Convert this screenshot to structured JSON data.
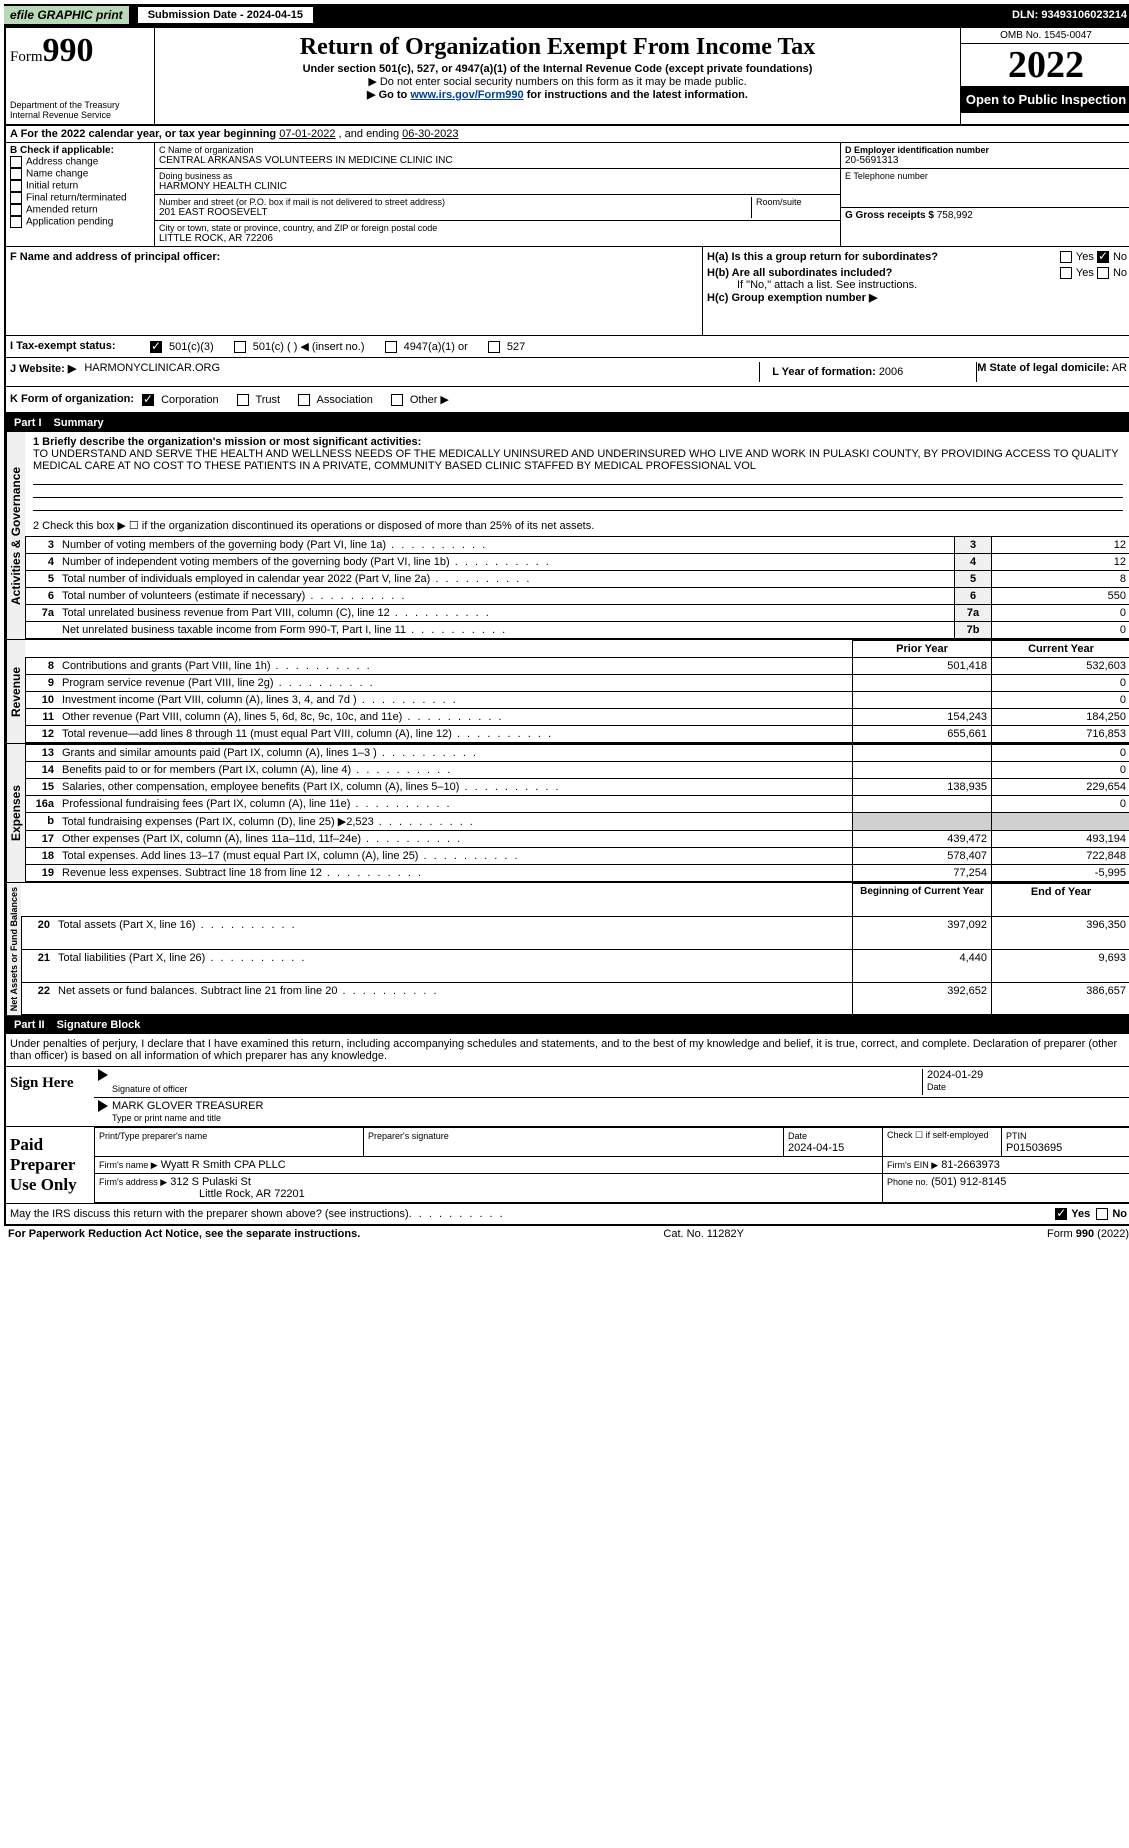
{
  "topbar": {
    "efile": "efile GRAPHIC print",
    "submission_label": "Submission Date - 2024-04-15",
    "dln": "DLN: 93493106023214"
  },
  "header": {
    "form_prefix": "Form",
    "form_number": "990",
    "dept": "Department of the Treasury",
    "irs": "Internal Revenue Service",
    "title": "Return of Organization Exempt From Income Tax",
    "subtitle": "Under section 501(c), 527, or 4947(a)(1) of the Internal Revenue Code (except private foundations)",
    "note1": "▶ Do not enter social security numbers on this form as it may be made public.",
    "note2_pre": "▶ Go to ",
    "note2_link": "www.irs.gov/Form990",
    "note2_post": " for instructions and the latest information.",
    "omb": "OMB No. 1545-0047",
    "year": "2022",
    "open": "Open to Public Inspection"
  },
  "sectionA": {
    "text_pre": "A For the 2022 calendar year, or tax year beginning ",
    "begin": "07-01-2022",
    "mid": " , and ending ",
    "end": "06-30-2023"
  },
  "sectionB": {
    "title": "B Check if applicable:",
    "items": [
      "Address change",
      "Name change",
      "Initial return",
      "Final return/terminated",
      "Amended return",
      "Application pending"
    ]
  },
  "sectionC": {
    "name_label": "C Name of organization",
    "name": "CENTRAL ARKANSAS VOLUNTEERS IN MEDICINE CLINIC INC",
    "dba_label": "Doing business as",
    "dba": "HARMONY HEALTH CLINIC",
    "street_label": "Number and street (or P.O. box if mail is not delivered to street address)",
    "street": "201 EAST ROOSEVELT",
    "room_label": "Room/suite",
    "city_label": "City or town, state or province, country, and ZIP or foreign postal code",
    "city": "LITTLE ROCK, AR  72206"
  },
  "sectionD": {
    "label": "D Employer identification number",
    "value": "20-5691313"
  },
  "sectionE": {
    "label": "E Telephone number",
    "value": ""
  },
  "sectionG": {
    "label": "G Gross receipts $",
    "value": "758,992"
  },
  "sectionF": {
    "label": "F  Name and address of principal officer:"
  },
  "sectionH": {
    "a": "H(a)  Is this a group return for subordinates?",
    "b": "H(b)  Are all subordinates included?",
    "b_note": "If \"No,\" attach a list. See instructions.",
    "c": "H(c)  Group exemption number ▶",
    "yes": "Yes",
    "no": "No"
  },
  "taxStatus": {
    "label": "I  Tax-exempt status:",
    "opts": [
      "501(c)(3)",
      "501(c) (  ) ◀ (insert no.)",
      "4947(a)(1) or",
      "527"
    ]
  },
  "sectionJ": {
    "label": "J  Website: ▶",
    "value": "HARMONYCLINICAR.ORG"
  },
  "sectionK": {
    "label": "K Form of organization:",
    "opts": [
      "Corporation",
      "Trust",
      "Association",
      "Other ▶"
    ]
  },
  "sectionL": {
    "label": "L Year of formation:",
    "value": "2006"
  },
  "sectionM": {
    "label": "M State of legal domicile:",
    "value": "AR"
  },
  "partI": {
    "label": "Part I",
    "title": "Summary"
  },
  "summary": {
    "q1": "1  Briefly describe the organization's mission or most significant activities:",
    "mission": "TO UNDERSTAND AND SERVE THE HEALTH AND WELLNESS NEEDS OF THE MEDICALLY UNINSURED AND UNDERINSURED WHO LIVE AND WORK IN PULASKI COUNTY, BY PROVIDING ACCESS TO QUALITY MEDICAL CARE AT NO COST TO THESE PATIENTS IN A PRIVATE, COMMUNITY BASED CLINIC STAFFED BY MEDICAL PROFESSIONAL VOL",
    "q2": "2  Check this box ▶ ☐ if the organization discontinued its operations or disposed of more than 25% of its net assets.",
    "lines_gov": [
      {
        "n": "3",
        "d": "Number of voting members of the governing body (Part VI, line 1a)",
        "idx": "3",
        "v": "12"
      },
      {
        "n": "4",
        "d": "Number of independent voting members of the governing body (Part VI, line 1b)",
        "idx": "4",
        "v": "12"
      },
      {
        "n": "5",
        "d": "Total number of individuals employed in calendar year 2022 (Part V, line 2a)",
        "idx": "5",
        "v": "8"
      },
      {
        "n": "6",
        "d": "Total number of volunteers (estimate if necessary)",
        "idx": "6",
        "v": "550"
      },
      {
        "n": "7a",
        "d": "Total unrelated business revenue from Part VIII, column (C), line 12",
        "idx": "7a",
        "v": "0"
      },
      {
        "n": "",
        "d": "Net unrelated business taxable income from Form 990-T, Part I, line 11",
        "idx": "7b",
        "v": "0"
      }
    ],
    "col_prior": "Prior Year",
    "col_current": "Current Year",
    "revenue": [
      {
        "n": "8",
        "d": "Contributions and grants (Part VIII, line 1h)",
        "p": "501,418",
        "c": "532,603"
      },
      {
        "n": "9",
        "d": "Program service revenue (Part VIII, line 2g)",
        "p": "",
        "c": "0"
      },
      {
        "n": "10",
        "d": "Investment income (Part VIII, column (A), lines 3, 4, and 7d )",
        "p": "",
        "c": "0"
      },
      {
        "n": "11",
        "d": "Other revenue (Part VIII, column (A), lines 5, 6d, 8c, 9c, 10c, and 11e)",
        "p": "154,243",
        "c": "184,250"
      },
      {
        "n": "12",
        "d": "Total revenue—add lines 8 through 11 (must equal Part VIII, column (A), line 12)",
        "p": "655,661",
        "c": "716,853"
      }
    ],
    "expenses": [
      {
        "n": "13",
        "d": "Grants and similar amounts paid (Part IX, column (A), lines 1–3 )",
        "p": "",
        "c": "0"
      },
      {
        "n": "14",
        "d": "Benefits paid to or for members (Part IX, column (A), line 4)",
        "p": "",
        "c": "0"
      },
      {
        "n": "15",
        "d": "Salaries, other compensation, employee benefits (Part IX, column (A), lines 5–10)",
        "p": "138,935",
        "c": "229,654"
      },
      {
        "n": "16a",
        "d": "Professional fundraising fees (Part IX, column (A), line 11e)",
        "p": "",
        "c": "0"
      },
      {
        "n": "b",
        "d": "Total fundraising expenses (Part IX, column (D), line 25) ▶2,523",
        "p": "shade",
        "c": "shade"
      },
      {
        "n": "17",
        "d": "Other expenses (Part IX, column (A), lines 11a–11d, 11f–24e)",
        "p": "439,472",
        "c": "493,194"
      },
      {
        "n": "18",
        "d": "Total expenses. Add lines 13–17 (must equal Part IX, column (A), line 25)",
        "p": "578,407",
        "c": "722,848"
      },
      {
        "n": "19",
        "d": "Revenue less expenses. Subtract line 18 from line 12",
        "p": "77,254",
        "c": "-5,995"
      }
    ],
    "col_begin": "Beginning of Current Year",
    "col_end": "End of Year",
    "netassets": [
      {
        "n": "20",
        "d": "Total assets (Part X, line 16)",
        "p": "397,092",
        "c": "396,350"
      },
      {
        "n": "21",
        "d": "Total liabilities (Part X, line 26)",
        "p": "4,440",
        "c": "9,693"
      },
      {
        "n": "22",
        "d": "Net assets or fund balances. Subtract line 21 from line 20",
        "p": "392,652",
        "c": "386,657"
      }
    ],
    "vlabels": {
      "gov": "Activities & Governance",
      "rev": "Revenue",
      "exp": "Expenses",
      "net": "Net Assets or Fund Balances"
    }
  },
  "partII": {
    "label": "Part II",
    "title": "Signature Block"
  },
  "penalties": "Under penalties of perjury, I declare that I have examined this return, including accompanying schedules and statements, and to the best of my knowledge and belief, it is true, correct, and complete. Declaration of preparer (other than officer) is based on all information of which preparer has any knowledge.",
  "sign": {
    "here": "Sign Here",
    "sig_officer": "Signature of officer",
    "date": "Date",
    "date_val": "2024-01-29",
    "name": "MARK GLOVER  TREASURER",
    "name_label": "Type or print name and title"
  },
  "paid": {
    "label": "Paid Preparer Use Only",
    "col1": "Print/Type preparer's name",
    "col2": "Preparer's signature",
    "col3": "Date",
    "date": "2024-04-15",
    "check": "Check ☐ if self-employed",
    "ptin_label": "PTIN",
    "ptin": "P01503695",
    "firm_name_label": "Firm's name    ▶",
    "firm_name": "Wyatt R Smith CPA PLLC",
    "firm_ein_label": "Firm's EIN ▶",
    "firm_ein": "81-2663973",
    "firm_addr_label": "Firm's address ▶",
    "firm_addr1": "312 S Pulaski St",
    "firm_addr2": "Little Rock, AR  72201",
    "phone_label": "Phone no.",
    "phone": "(501) 912-8145"
  },
  "discuss": "May the IRS discuss this return with the preparer shown above? (see instructions)",
  "footer": {
    "left": "For Paperwork Reduction Act Notice, see the separate instructions.",
    "mid": "Cat. No. 11282Y",
    "right": "Form 990 (2022)"
  }
}
